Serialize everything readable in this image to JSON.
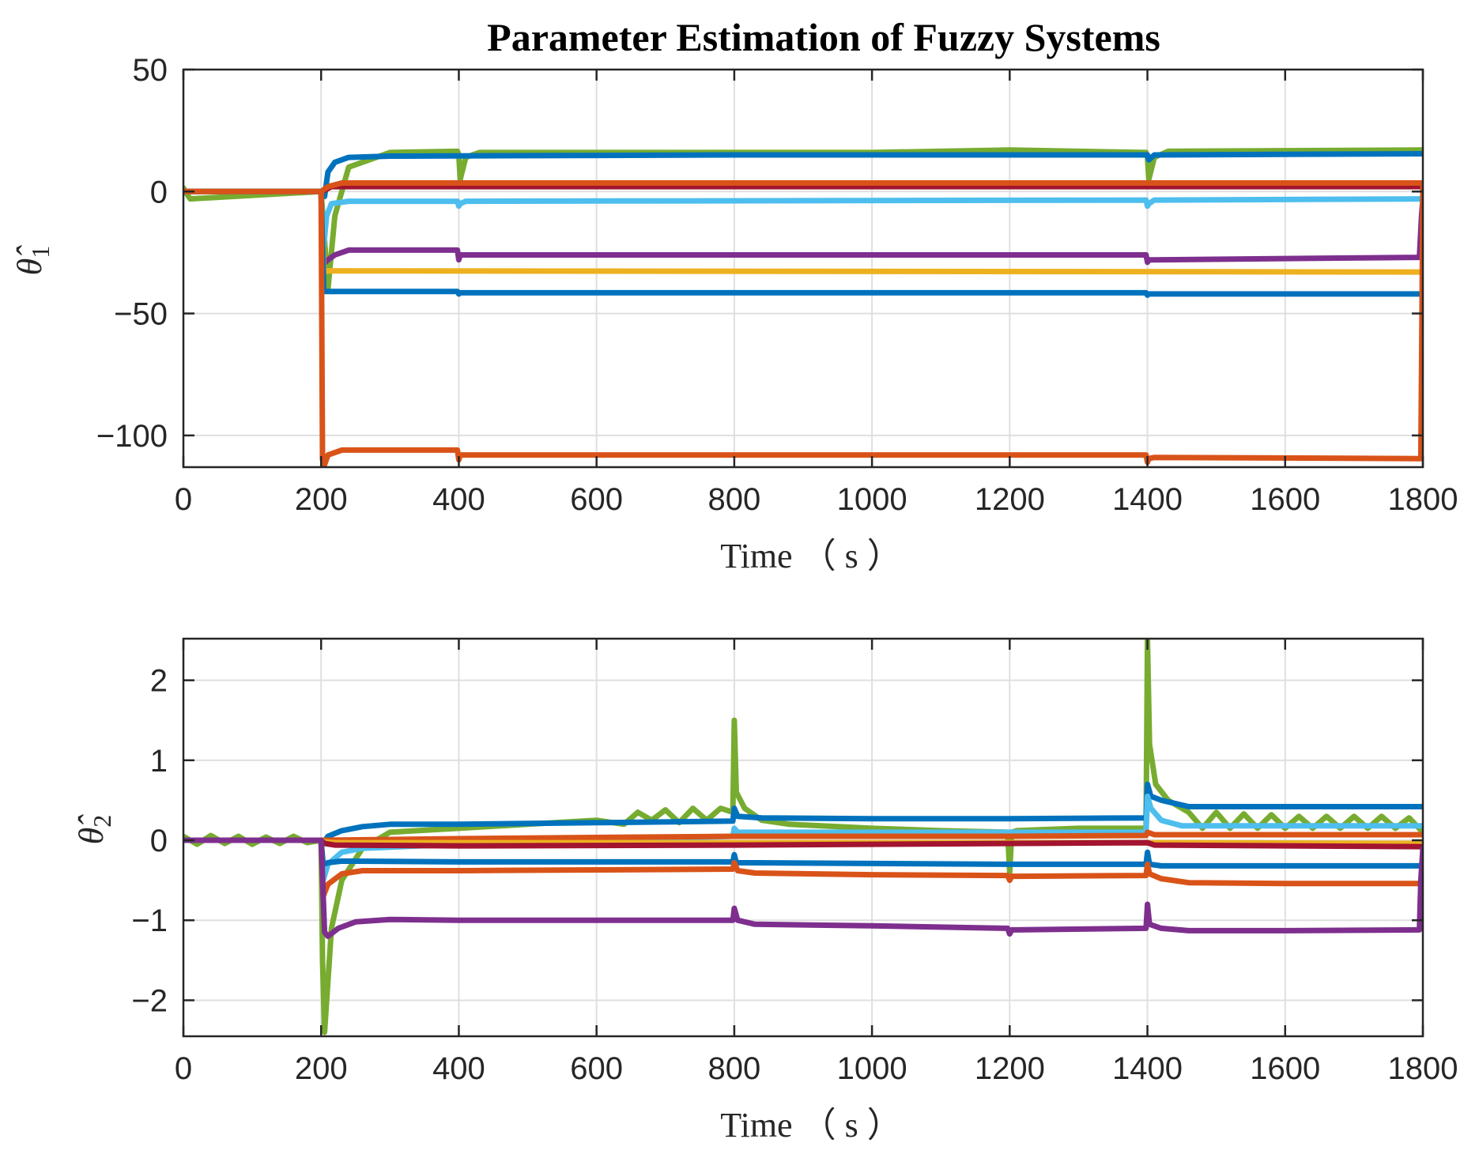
{
  "chart_data": [
    {
      "type": "line",
      "title": "Parameter Estimation of Fuzzy Systems",
      "xlabel": "Time （ s ）",
      "ylabel": "θ̂1",
      "ylabel_main": "θ̂",
      "ylabel_sub": "1",
      "xlim": [
        0,
        1800
      ],
      "ylim": [
        -113,
        50
      ],
      "xticks": [
        0,
        200,
        400,
        600,
        800,
        1000,
        1200,
        1400,
        1600,
        1800
      ],
      "xtick_labels": [
        "0",
        "200",
        "400",
        "600",
        "800",
        "1000",
        "1200",
        "1400",
        "1600",
        "1800"
      ],
      "yticks": [
        50,
        0,
        -50,
        -100
      ],
      "ytick_labels": [
        "50",
        "0",
        "−50",
        "−100"
      ],
      "grid": true,
      "series": [
        {
          "name": "series-green",
          "color": "#77ac30",
          "x": [
            0,
            5,
            10,
            200,
            205,
            210,
            220,
            240,
            300,
            398,
            400,
            402,
            410,
            430,
            800,
            1000,
            1200,
            1398,
            1400,
            1402,
            1410,
            1430,
            1800
          ],
          "y": [
            1.5,
            -1,
            -3,
            0,
            -20,
            -40,
            -10,
            10,
            16,
            16.5,
            15,
            5,
            14,
            16,
            16,
            16,
            17,
            16,
            14,
            5,
            14,
            16.5,
            17
          ]
        },
        {
          "name": "series-blue-top",
          "color": "#0072bd",
          "x": [
            0,
            200,
            205,
            210,
            220,
            240,
            300,
            800,
            1400,
            1402,
            1410,
            1800
          ],
          "y": [
            0,
            0,
            -2,
            8,
            12,
            14,
            14.5,
            15,
            15,
            13,
            15,
            15.5
          ]
        },
        {
          "name": "series-red",
          "color": "#a2142f",
          "x": [
            0,
            200,
            205,
            215,
            1800
          ],
          "y": [
            0,
            0,
            0.5,
            2,
            2
          ]
        },
        {
          "name": "series-orange-mid",
          "color": "#d95319",
          "x": [
            0,
            200,
            210,
            230,
            1800
          ],
          "y": [
            0,
            0,
            2,
            3.5,
            3.5
          ]
        },
        {
          "name": "series-lightblue",
          "color": "#4dbeee",
          "x": [
            0,
            200,
            204,
            208,
            215,
            240,
            398,
            400,
            402,
            410,
            1398,
            1400,
            1402,
            1410,
            1800
          ],
          "y": [
            0,
            0,
            -22,
            -10,
            -5,
            -4,
            -4,
            -6,
            -5,
            -4,
            -3.5,
            -6,
            -5,
            -3.5,
            -3
          ]
        },
        {
          "name": "series-purple",
          "color": "#7e2f8e",
          "x": [
            0,
            200,
            202,
            210,
            220,
            240,
            398,
            400,
            402,
            410,
            1398,
            1400,
            1402,
            1410,
            1795,
            1798,
            1800
          ],
          "y": [
            0,
            0,
            -30,
            -28,
            -26,
            -24,
            -24,
            -28,
            -26,
            -26,
            -26,
            -29,
            -28,
            -28,
            -27,
            -10,
            -3
          ]
        },
        {
          "name": "series-yellow",
          "color": "#edb120",
          "x": [
            0,
            200,
            204,
            210,
            1800
          ],
          "y": [
            0,
            0,
            -33,
            -32.5,
            -33
          ]
        },
        {
          "name": "series-blue-low",
          "color": "#0072bd",
          "x": [
            0,
            200,
            204,
            210,
            398,
            400,
            402,
            1398,
            1400,
            1402,
            1800
          ],
          "y": [
            0,
            0,
            -41,
            -41,
            -41,
            -42,
            -41.5,
            -41.5,
            -42.5,
            -42,
            -42
          ]
        },
        {
          "name": "series-orange-low",
          "color": "#d95319",
          "x": [
            0,
            200,
            202,
            205,
            210,
            230,
            398,
            400,
            402,
            410,
            1398,
            1400,
            1402,
            1410,
            1797,
            1799,
            1800
          ],
          "y": [
            0,
            0,
            -110,
            -112,
            -108,
            -106,
            -106,
            -110,
            -108,
            -108,
            -108,
            -111,
            -109.5,
            -109,
            -109.5,
            -40,
            3
          ]
        }
      ]
    },
    {
      "type": "line",
      "title": "",
      "xlabel": "Time （ s ）",
      "ylabel": "θ̂2",
      "ylabel_main": "θ̂",
      "ylabel_sub": "2",
      "xlim": [
        0,
        1800
      ],
      "ylim": [
        -2.45,
        2.52
      ],
      "xticks": [
        0,
        200,
        400,
        600,
        800,
        1000,
        1200,
        1400,
        1600,
        1800
      ],
      "xtick_labels": [
        "0",
        "200",
        "400",
        "600",
        "800",
        "1000",
        "1200",
        "1400",
        "1600",
        "1800"
      ],
      "yticks": [
        2,
        1,
        0,
        -1,
        -2
      ],
      "ytick_labels": [
        "2",
        "1",
        "0",
        "−1",
        "−2"
      ],
      "grid": true,
      "series": [
        {
          "name": "series-green",
          "color": "#77ac30",
          "x": [
            0,
            20,
            40,
            60,
            80,
            100,
            120,
            140,
            160,
            180,
            200,
            202,
            205,
            215,
            230,
            260,
            300,
            400,
            500,
            600,
            640,
            660,
            680,
            700,
            720,
            740,
            760,
            780,
            798,
            800,
            803,
            815,
            840,
            880,
            1000,
            1100,
            1197,
            1200,
            1203,
            1210,
            1300,
            1398,
            1400,
            1403,
            1412,
            1430,
            1460,
            1480,
            1500,
            1520,
            1540,
            1560,
            1580,
            1600,
            1620,
            1640,
            1660,
            1680,
            1700,
            1720,
            1740,
            1760,
            1780,
            1800
          ],
          "y": [
            0.05,
            -0.05,
            0.06,
            -0.04,
            0.05,
            -0.05,
            0.04,
            -0.04,
            0.05,
            -0.03,
            0,
            -1.5,
            -2.4,
            -1.1,
            -0.5,
            -0.1,
            0.1,
            0.15,
            0.2,
            0.25,
            0.2,
            0.35,
            0.25,
            0.38,
            0.22,
            0.4,
            0.25,
            0.4,
            0.35,
            1.5,
            0.6,
            0.4,
            0.25,
            0.2,
            0.15,
            0.12,
            0.1,
            -0.4,
            0.1,
            0.12,
            0.15,
            0.15,
            2.5,
            1.2,
            0.7,
            0.5,
            0.35,
            0.15,
            0.35,
            0.15,
            0.33,
            0.15,
            0.32,
            0.15,
            0.3,
            0.15,
            0.3,
            0.15,
            0.3,
            0.15,
            0.3,
            0.15,
            0.28,
            0.1
          ]
        },
        {
          "name": "series-blue-top",
          "color": "#0072bd",
          "x": [
            0,
            200,
            202,
            210,
            230,
            260,
            300,
            400,
            600,
            798,
            800,
            805,
            840,
            1000,
            1200,
            1398,
            1400,
            1405,
            1420,
            1460,
            1600,
            1800
          ],
          "y": [
            0,
            0,
            -0.05,
            0.05,
            0.12,
            0.17,
            0.2,
            0.2,
            0.22,
            0.24,
            0.4,
            0.3,
            0.28,
            0.27,
            0.27,
            0.28,
            0.7,
            0.55,
            0.5,
            0.42,
            0.42,
            0.42
          ]
        },
        {
          "name": "series-lightblue",
          "color": "#4dbeee",
          "x": [
            0,
            200,
            203,
            210,
            230,
            260,
            400,
            600,
            798,
            800,
            805,
            1398,
            1400,
            1405,
            1420,
            1450,
            1800
          ],
          "y": [
            0,
            0,
            -0.5,
            -0.3,
            -0.15,
            -0.1,
            -0.05,
            0,
            0.05,
            0.15,
            0.1,
            0.1,
            0.55,
            0.4,
            0.25,
            0.18,
            0.18
          ]
        },
        {
          "name": "series-orange-mid",
          "color": "#d95319",
          "x": [
            0,
            200,
            400,
            800,
            1200,
            1398,
            1400,
            1410,
            1800
          ],
          "y": [
            0,
            0,
            0.02,
            0.05,
            0.05,
            0.06,
            0.1,
            0.07,
            0.07
          ]
        },
        {
          "name": "series-yellow",
          "color": "#edb120",
          "x": [
            0,
            200,
            205,
            220,
            800,
            1400,
            1800
          ],
          "y": [
            0,
            0,
            -0.02,
            -0.03,
            -0.03,
            -0.03,
            -0.04
          ]
        },
        {
          "name": "series-red",
          "color": "#a2142f",
          "x": [
            0,
            200,
            205,
            220,
            400,
            800,
            1400,
            1410,
            1800
          ],
          "y": [
            0,
            0,
            -0.04,
            -0.06,
            -0.07,
            -0.06,
            -0.03,
            -0.06,
            -0.08
          ]
        },
        {
          "name": "series-blue-low",
          "color": "#0072bd",
          "x": [
            0,
            200,
            203,
            210,
            230,
            400,
            798,
            800,
            803,
            1200,
            1398,
            1400,
            1403,
            1420,
            1800
          ],
          "y": [
            0,
            0,
            -0.3,
            -0.28,
            -0.26,
            -0.27,
            -0.27,
            -0.18,
            -0.28,
            -0.3,
            -0.3,
            -0.15,
            -0.3,
            -0.32,
            -0.32
          ]
        },
        {
          "name": "series-orange-low",
          "color": "#d95319",
          "x": [
            0,
            200,
            203,
            210,
            230,
            260,
            400,
            600,
            798,
            800,
            805,
            830,
            1000,
            1197,
            1200,
            1203,
            1210,
            1398,
            1400,
            1403,
            1420,
            1460,
            1600,
            1800
          ],
          "y": [
            0,
            0,
            -0.7,
            -0.55,
            -0.42,
            -0.38,
            -0.38,
            -0.37,
            -0.36,
            -0.28,
            -0.38,
            -0.41,
            -0.43,
            -0.44,
            -0.5,
            -0.45,
            -0.45,
            -0.44,
            -0.3,
            -0.42,
            -0.48,
            -0.53,
            -0.54,
            -0.54
          ]
        },
        {
          "name": "series-purple",
          "color": "#7e2f8e",
          "x": [
            0,
            200,
            205,
            210,
            225,
            250,
            300,
            400,
            600,
            798,
            800,
            805,
            830,
            1000,
            1197,
            1200,
            1203,
            1210,
            1398,
            1400,
            1403,
            1420,
            1460,
            1600,
            1795,
            1797,
            1800
          ],
          "y": [
            0,
            0,
            -1.15,
            -1.2,
            -1.1,
            -1.02,
            -0.99,
            -1.0,
            -1.0,
            -1.0,
            -0.85,
            -1.0,
            -1.05,
            -1.07,
            -1.1,
            -1.17,
            -1.12,
            -1.12,
            -1.1,
            -0.8,
            -1.05,
            -1.1,
            -1.13,
            -1.13,
            -1.12,
            -0.5,
            -0.1
          ]
        }
      ]
    }
  ]
}
